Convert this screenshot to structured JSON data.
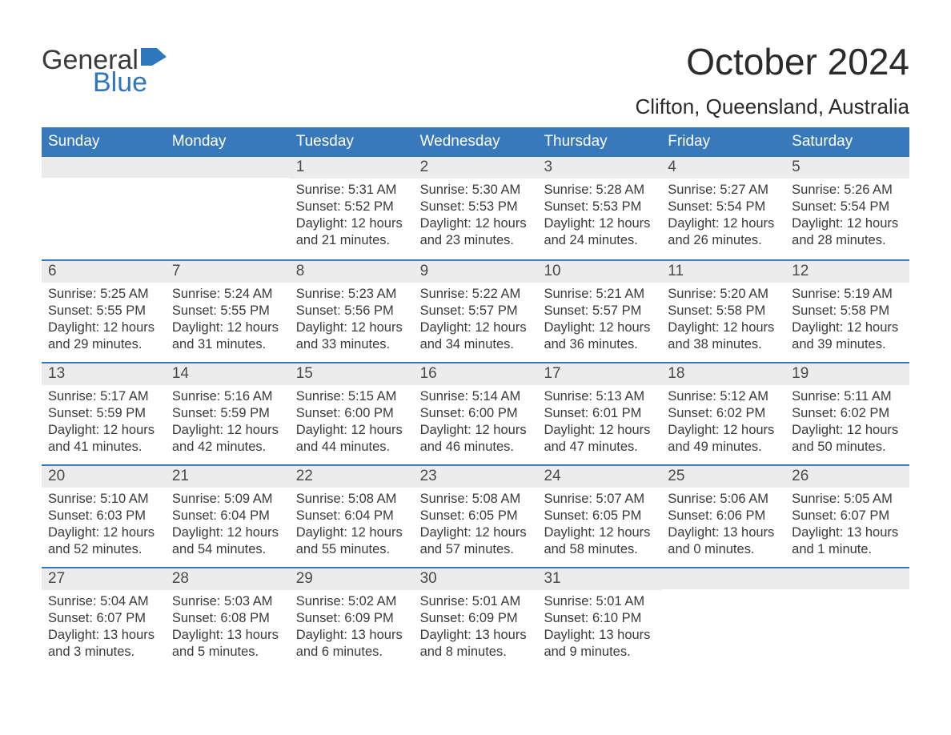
{
  "logo": {
    "general": "General",
    "blue": "Blue",
    "flag_color": "#2f77bd"
  },
  "title": "October 2024",
  "location": "Clifton, Queensland, Australia",
  "colors": {
    "header_bg": "#3879bc",
    "header_text": "#ffffff",
    "daynum_bg": "#ececec",
    "row_border": "#3879bc",
    "body_text": "#3a3a3a",
    "logo_blue": "#2f77bd"
  },
  "day_headers": [
    "Sunday",
    "Monday",
    "Tuesday",
    "Wednesday",
    "Thursday",
    "Friday",
    "Saturday"
  ],
  "weeks": [
    [
      {
        "day": "",
        "sunrise": "",
        "sunset": "",
        "daylight": ""
      },
      {
        "day": "",
        "sunrise": "",
        "sunset": "",
        "daylight": ""
      },
      {
        "day": "1",
        "sunrise": "Sunrise: 5:31 AM",
        "sunset": "Sunset: 5:52 PM",
        "daylight": "Daylight: 12 hours and 21 minutes."
      },
      {
        "day": "2",
        "sunrise": "Sunrise: 5:30 AM",
        "sunset": "Sunset: 5:53 PM",
        "daylight": "Daylight: 12 hours and 23 minutes."
      },
      {
        "day": "3",
        "sunrise": "Sunrise: 5:28 AM",
        "sunset": "Sunset: 5:53 PM",
        "daylight": "Daylight: 12 hours and 24 minutes."
      },
      {
        "day": "4",
        "sunrise": "Sunrise: 5:27 AM",
        "sunset": "Sunset: 5:54 PM",
        "daylight": "Daylight: 12 hours and 26 minutes."
      },
      {
        "day": "5",
        "sunrise": "Sunrise: 5:26 AM",
        "sunset": "Sunset: 5:54 PM",
        "daylight": "Daylight: 12 hours and 28 minutes."
      }
    ],
    [
      {
        "day": "6",
        "sunrise": "Sunrise: 5:25 AM",
        "sunset": "Sunset: 5:55 PM",
        "daylight": "Daylight: 12 hours and 29 minutes."
      },
      {
        "day": "7",
        "sunrise": "Sunrise: 5:24 AM",
        "sunset": "Sunset: 5:55 PM",
        "daylight": "Daylight: 12 hours and 31 minutes."
      },
      {
        "day": "8",
        "sunrise": "Sunrise: 5:23 AM",
        "sunset": "Sunset: 5:56 PM",
        "daylight": "Daylight: 12 hours and 33 minutes."
      },
      {
        "day": "9",
        "sunrise": "Sunrise: 5:22 AM",
        "sunset": "Sunset: 5:57 PM",
        "daylight": "Daylight: 12 hours and 34 minutes."
      },
      {
        "day": "10",
        "sunrise": "Sunrise: 5:21 AM",
        "sunset": "Sunset: 5:57 PM",
        "daylight": "Daylight: 12 hours and 36 minutes."
      },
      {
        "day": "11",
        "sunrise": "Sunrise: 5:20 AM",
        "sunset": "Sunset: 5:58 PM",
        "daylight": "Daylight: 12 hours and 38 minutes."
      },
      {
        "day": "12",
        "sunrise": "Sunrise: 5:19 AM",
        "sunset": "Sunset: 5:58 PM",
        "daylight": "Daylight: 12 hours and 39 minutes."
      }
    ],
    [
      {
        "day": "13",
        "sunrise": "Sunrise: 5:17 AM",
        "sunset": "Sunset: 5:59 PM",
        "daylight": "Daylight: 12 hours and 41 minutes."
      },
      {
        "day": "14",
        "sunrise": "Sunrise: 5:16 AM",
        "sunset": "Sunset: 5:59 PM",
        "daylight": "Daylight: 12 hours and 42 minutes."
      },
      {
        "day": "15",
        "sunrise": "Sunrise: 5:15 AM",
        "sunset": "Sunset: 6:00 PM",
        "daylight": "Daylight: 12 hours and 44 minutes."
      },
      {
        "day": "16",
        "sunrise": "Sunrise: 5:14 AM",
        "sunset": "Sunset: 6:00 PM",
        "daylight": "Daylight: 12 hours and 46 minutes."
      },
      {
        "day": "17",
        "sunrise": "Sunrise: 5:13 AM",
        "sunset": "Sunset: 6:01 PM",
        "daylight": "Daylight: 12 hours and 47 minutes."
      },
      {
        "day": "18",
        "sunrise": "Sunrise: 5:12 AM",
        "sunset": "Sunset: 6:02 PM",
        "daylight": "Daylight: 12 hours and 49 minutes."
      },
      {
        "day": "19",
        "sunrise": "Sunrise: 5:11 AM",
        "sunset": "Sunset: 6:02 PM",
        "daylight": "Daylight: 12 hours and 50 minutes."
      }
    ],
    [
      {
        "day": "20",
        "sunrise": "Sunrise: 5:10 AM",
        "sunset": "Sunset: 6:03 PM",
        "daylight": "Daylight: 12 hours and 52 minutes."
      },
      {
        "day": "21",
        "sunrise": "Sunrise: 5:09 AM",
        "sunset": "Sunset: 6:04 PM",
        "daylight": "Daylight: 12 hours and 54 minutes."
      },
      {
        "day": "22",
        "sunrise": "Sunrise: 5:08 AM",
        "sunset": "Sunset: 6:04 PM",
        "daylight": "Daylight: 12 hours and 55 minutes."
      },
      {
        "day": "23",
        "sunrise": "Sunrise: 5:08 AM",
        "sunset": "Sunset: 6:05 PM",
        "daylight": "Daylight: 12 hours and 57 minutes."
      },
      {
        "day": "24",
        "sunrise": "Sunrise: 5:07 AM",
        "sunset": "Sunset: 6:05 PM",
        "daylight": "Daylight: 12 hours and 58 minutes."
      },
      {
        "day": "25",
        "sunrise": "Sunrise: 5:06 AM",
        "sunset": "Sunset: 6:06 PM",
        "daylight": "Daylight: 13 hours and 0 minutes."
      },
      {
        "day": "26",
        "sunrise": "Sunrise: 5:05 AM",
        "sunset": "Sunset: 6:07 PM",
        "daylight": "Daylight: 13 hours and 1 minute."
      }
    ],
    [
      {
        "day": "27",
        "sunrise": "Sunrise: 5:04 AM",
        "sunset": "Sunset: 6:07 PM",
        "daylight": "Daylight: 13 hours and 3 minutes."
      },
      {
        "day": "28",
        "sunrise": "Sunrise: 5:03 AM",
        "sunset": "Sunset: 6:08 PM",
        "daylight": "Daylight: 13 hours and 5 minutes."
      },
      {
        "day": "29",
        "sunrise": "Sunrise: 5:02 AM",
        "sunset": "Sunset: 6:09 PM",
        "daylight": "Daylight: 13 hours and 6 minutes."
      },
      {
        "day": "30",
        "sunrise": "Sunrise: 5:01 AM",
        "sunset": "Sunset: 6:09 PM",
        "daylight": "Daylight: 13 hours and 8 minutes."
      },
      {
        "day": "31",
        "sunrise": "Sunrise: 5:01 AM",
        "sunset": "Sunset: 6:10 PM",
        "daylight": "Daylight: 13 hours and 9 minutes."
      },
      {
        "day": "",
        "sunrise": "",
        "sunset": "",
        "daylight": ""
      },
      {
        "day": "",
        "sunrise": "",
        "sunset": "",
        "daylight": ""
      }
    ]
  ]
}
